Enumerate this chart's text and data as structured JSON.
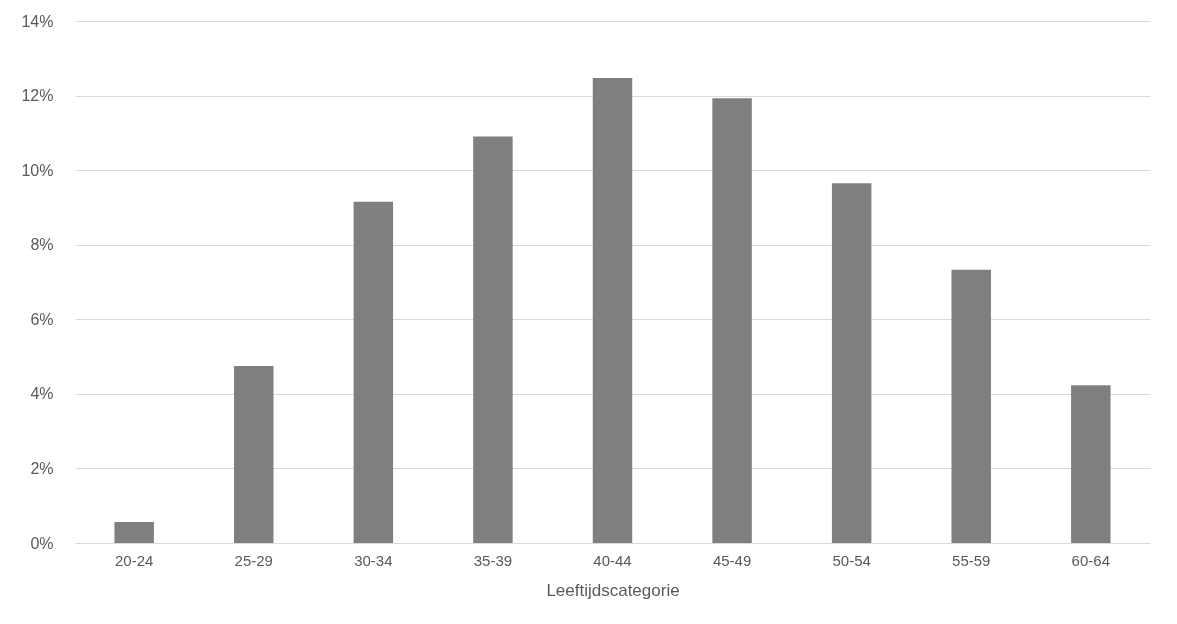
{
  "chart_data": {
    "type": "bar",
    "xlabel": "Leeftijdscategorie",
    "categories": [
      "20-24",
      "25-29",
      "30-34",
      "35-39",
      "40-44",
      "45-49",
      "50-54",
      "55-59",
      "60-64"
    ],
    "values": [
      0.56,
      4.75,
      9.15,
      10.9,
      12.47,
      11.93,
      9.65,
      7.33,
      4.23
    ],
    "color": "#7f7f7f",
    "ylim": [
      0,
      14
    ],
    "yticks": [
      {
        "value": 0,
        "label": "0%"
      },
      {
        "value": 2,
        "label": "2%"
      },
      {
        "value": 4,
        "label": "4%"
      },
      {
        "value": 6,
        "label": "6%"
      },
      {
        "value": 8,
        "label": "8%"
      },
      {
        "value": 10,
        "label": "10%"
      },
      {
        "value": 12,
        "label": "12%"
      },
      {
        "value": 14,
        "label": "14%"
      }
    ],
    "grid": "y"
  }
}
